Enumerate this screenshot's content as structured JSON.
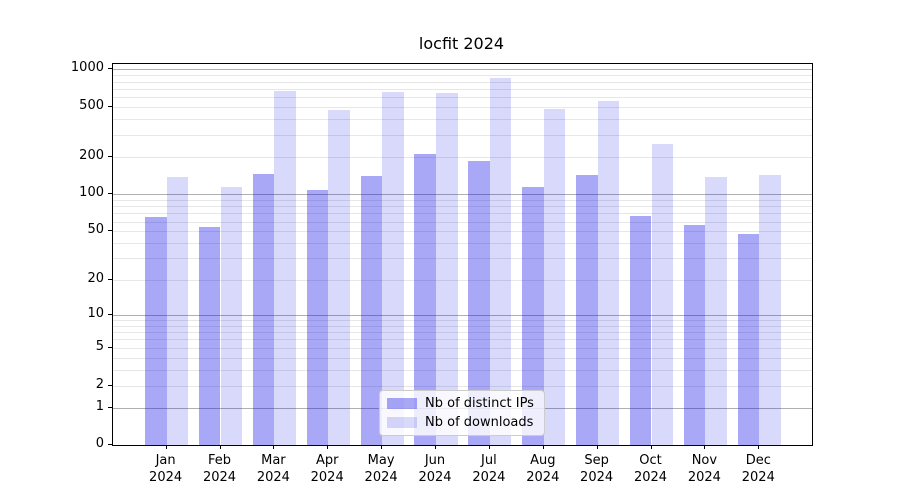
{
  "title": "locfit 2024",
  "legend": {
    "items": [
      {
        "label": "Nb of distinct IPs",
        "series_key": "nb_distinct_ips"
      },
      {
        "label": "Nb of downloads",
        "series_key": "nb_downloads"
      }
    ]
  },
  "colors": {
    "nb_distinct_ips": "rgba(0,0,230,0.34)",
    "nb_downloads": "rgba(0,0,230,0.15)",
    "major_gridline": "#b0b0b0",
    "minor_gridline": "#e7e7e7",
    "axis": "#000000",
    "legend_border": "#cccccc"
  },
  "chart_data": {
    "type": "bar",
    "title": "locfit 2024",
    "categories": [
      "Jan 2024",
      "Feb 2024",
      "Mar 2024",
      "Apr 2024",
      "May 2024",
      "Jun 2024",
      "Jul 2024",
      "Aug 2024",
      "Sep 2024",
      "Oct 2024",
      "Nov 2024",
      "Dec 2024"
    ],
    "month_short": [
      "Jan",
      "Feb",
      "Mar",
      "Apr",
      "May",
      "Jun",
      "Jul",
      "Aug",
      "Sep",
      "Oct",
      "Nov",
      "Dec"
    ],
    "year": "2024",
    "series": [
      {
        "name": "Nb of distinct IPs",
        "values": [
          65,
          54,
          145,
          108,
          140,
          209,
          184,
          114,
          143,
          66,
          56,
          47
        ]
      },
      {
        "name": "Nb of downloads",
        "values": [
          137,
          114,
          671,
          468,
          654,
          639,
          848,
          483,
          556,
          251,
          136,
          143
        ]
      }
    ],
    "xlabel": "",
    "ylabel": "",
    "y_scale": "log1p",
    "ylim": [
      0,
      1000
    ],
    "y_ticks": [
      0,
      1,
      2,
      5,
      10,
      20,
      50,
      100,
      200,
      500,
      1000
    ],
    "y_major_gridlines": [
      1,
      10,
      100,
      1000
    ],
    "grid": "both",
    "legend_position": "inside lower-center"
  }
}
